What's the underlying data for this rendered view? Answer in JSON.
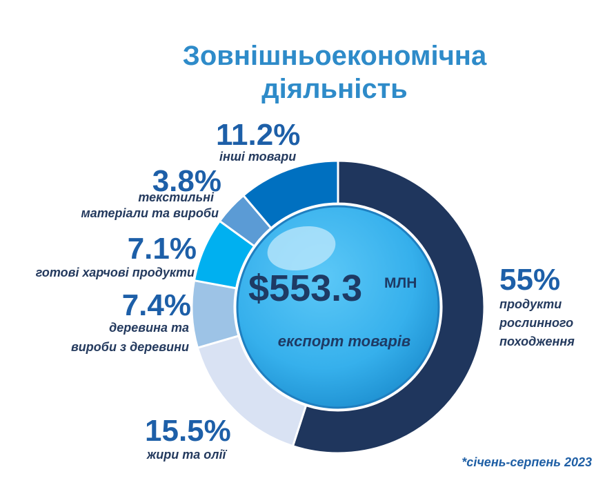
{
  "title": {
    "line1": "Зовнішньоекономічна",
    "line2": "діяльність"
  },
  "center": {
    "value": "$553.3",
    "unit": "МЛН",
    "subtitle": "експорт товарів"
  },
  "footnote": "*січень-серпень 2023",
  "colors": {
    "title": "#2e8bc9",
    "percent": "#1d5fa8",
    "label": "#243a5e",
    "center_text": "#1e3a64",
    "bubble": "#3ab6f0"
  },
  "chart_data": {
    "type": "pie",
    "style": "donut",
    "total_label": "$553.3 МЛН",
    "slices": [
      {
        "label_lines": [
          "продукти",
          "рослинного",
          "походження"
        ],
        "pct_text": "55%",
        "value": 55,
        "color": "#1f365d"
      },
      {
        "label_lines": [
          "жири та олії"
        ],
        "pct_text": "15.5%",
        "value": 15.5,
        "color": "#d9e2f3"
      },
      {
        "label_lines": [
          "деревина та",
          "вироби з деревини"
        ],
        "pct_text": "7.4%",
        "value": 7.4,
        "color": "#9dc3e6"
      },
      {
        "label_lines": [
          "готові харчові продукти"
        ],
        "pct_text": "7.1%",
        "value": 7.1,
        "color": "#00b0f0"
      },
      {
        "label_lines": [
          "текстильні",
          "матеріали та вироби"
        ],
        "pct_text": "3.8%",
        "value": 3.8,
        "color": "#5b9bd5"
      },
      {
        "label_lines": [
          "інші товари"
        ],
        "pct_text": "11.2%",
        "value": 11.2,
        "color": "#0070c0"
      }
    ]
  }
}
